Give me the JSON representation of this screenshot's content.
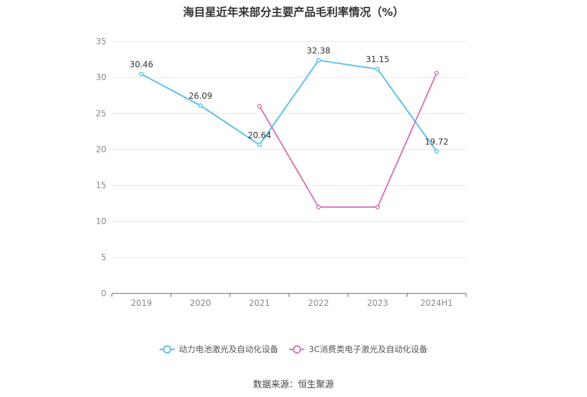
{
  "title": "海目星近年来部分主要产品毛利率情况（%）",
  "source": "数据来源：恒生聚源",
  "chart_data": {
    "type": "line",
    "categories": [
      "2019",
      "2020",
      "2021",
      "2022",
      "2023",
      "2024H1"
    ],
    "ylim": [
      0,
      35
    ],
    "yticks": [
      0,
      5,
      10,
      15,
      20,
      25,
      30,
      35
    ],
    "grid": true,
    "legend_position": "bottom",
    "series": [
      {
        "name": "动力电池激光及自动化设备",
        "color": "#5bc0ef",
        "values": [
          30.46,
          26.09,
          20.64,
          32.38,
          31.15,
          19.72
        ],
        "labels": [
          "30.46",
          "26.09",
          "20.64",
          "32.38",
          "31.15",
          "19.72"
        ]
      },
      {
        "name": "3C消费类电子激光及自动化设备",
        "color": "#d774b8",
        "values": [
          null,
          null,
          26.0,
          12.0,
          12.0,
          30.6
        ],
        "labels": null
      }
    ]
  }
}
